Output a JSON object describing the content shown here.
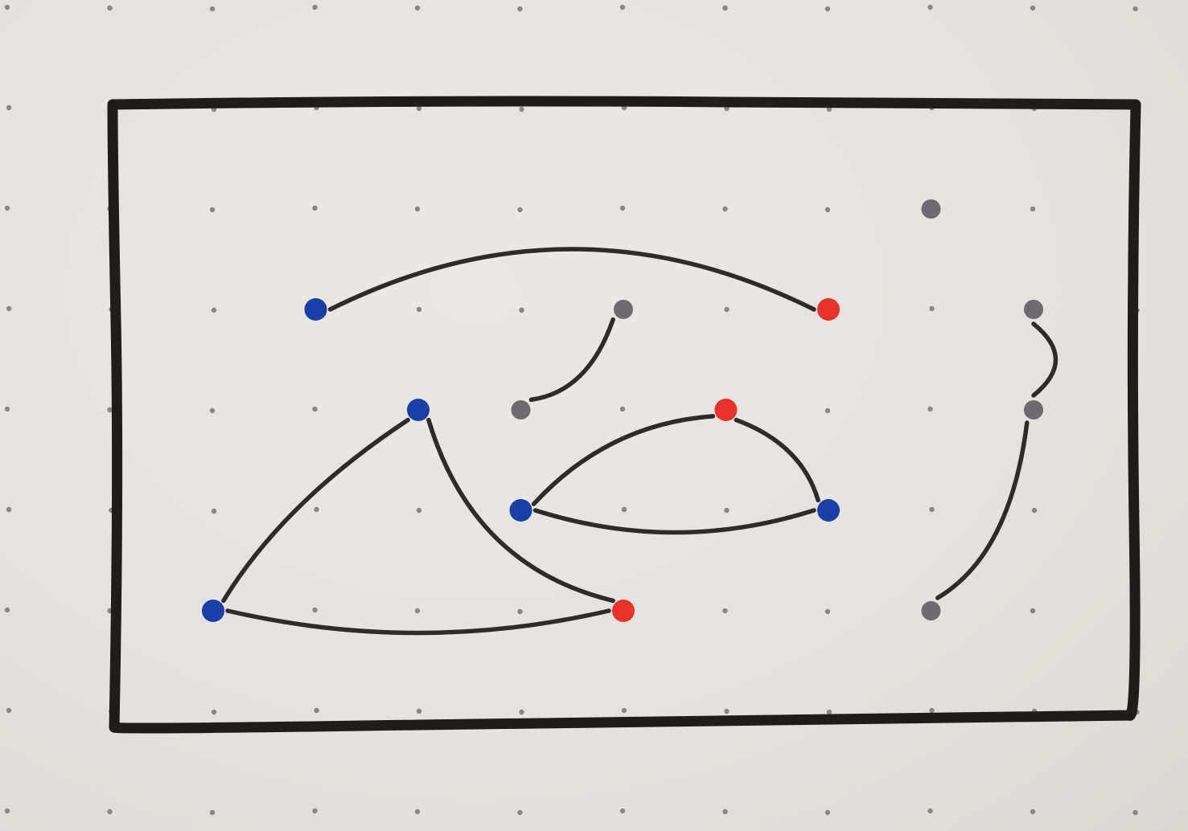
{
  "colors": {
    "paper": "#e7e3e0",
    "grid_dot": "#8a8686",
    "ink": "#2e2c2b",
    "frame": "#1f1d1c",
    "blue": "#1a3fa6",
    "red": "#e8322a",
    "gray": "#6e6a70"
  },
  "grid": {
    "columns": 12,
    "rows": 9
  },
  "nodes": [
    {
      "id": "n1",
      "col": 3,
      "row": 3,
      "color": "blue"
    },
    {
      "id": "n2",
      "col": 8,
      "row": 3,
      "color": "red"
    },
    {
      "id": "n3",
      "col": 6,
      "row": 3,
      "color": "gray"
    },
    {
      "id": "n4",
      "col": 10,
      "row": 3,
      "color": "gray"
    },
    {
      "id": "n5",
      "col": 4,
      "row": 4,
      "color": "blue"
    },
    {
      "id": "n6",
      "col": 5,
      "row": 4,
      "color": "gray"
    },
    {
      "id": "n7",
      "col": 7,
      "row": 4,
      "color": "red"
    },
    {
      "id": "n8",
      "col": 10,
      "row": 4,
      "color": "gray"
    },
    {
      "id": "n9",
      "col": 5,
      "row": 5,
      "color": "blue"
    },
    {
      "id": "n10",
      "col": 8,
      "row": 5,
      "color": "blue"
    },
    {
      "id": "n11",
      "col": 2,
      "row": 6,
      "color": "blue"
    },
    {
      "id": "n12",
      "col": 6,
      "row": 6,
      "color": "red"
    },
    {
      "id": "n13",
      "col": 9,
      "row": 6,
      "color": "gray"
    },
    {
      "id": "n14",
      "col": 9,
      "row": 2,
      "color": "gray"
    }
  ],
  "edges": [
    {
      "from": "n1",
      "to": "n2"
    },
    {
      "from": "n3",
      "to": "n6"
    },
    {
      "from": "n4",
      "to": "n8"
    },
    {
      "from": "n8",
      "to": "n13"
    },
    {
      "from": "n5",
      "to": "n11"
    },
    {
      "from": "n5",
      "to": "n12"
    },
    {
      "from": "n11",
      "to": "n12"
    },
    {
      "from": "n9",
      "to": "n7"
    },
    {
      "from": "n7",
      "to": "n10"
    },
    {
      "from": "n9",
      "to": "n10"
    }
  ]
}
